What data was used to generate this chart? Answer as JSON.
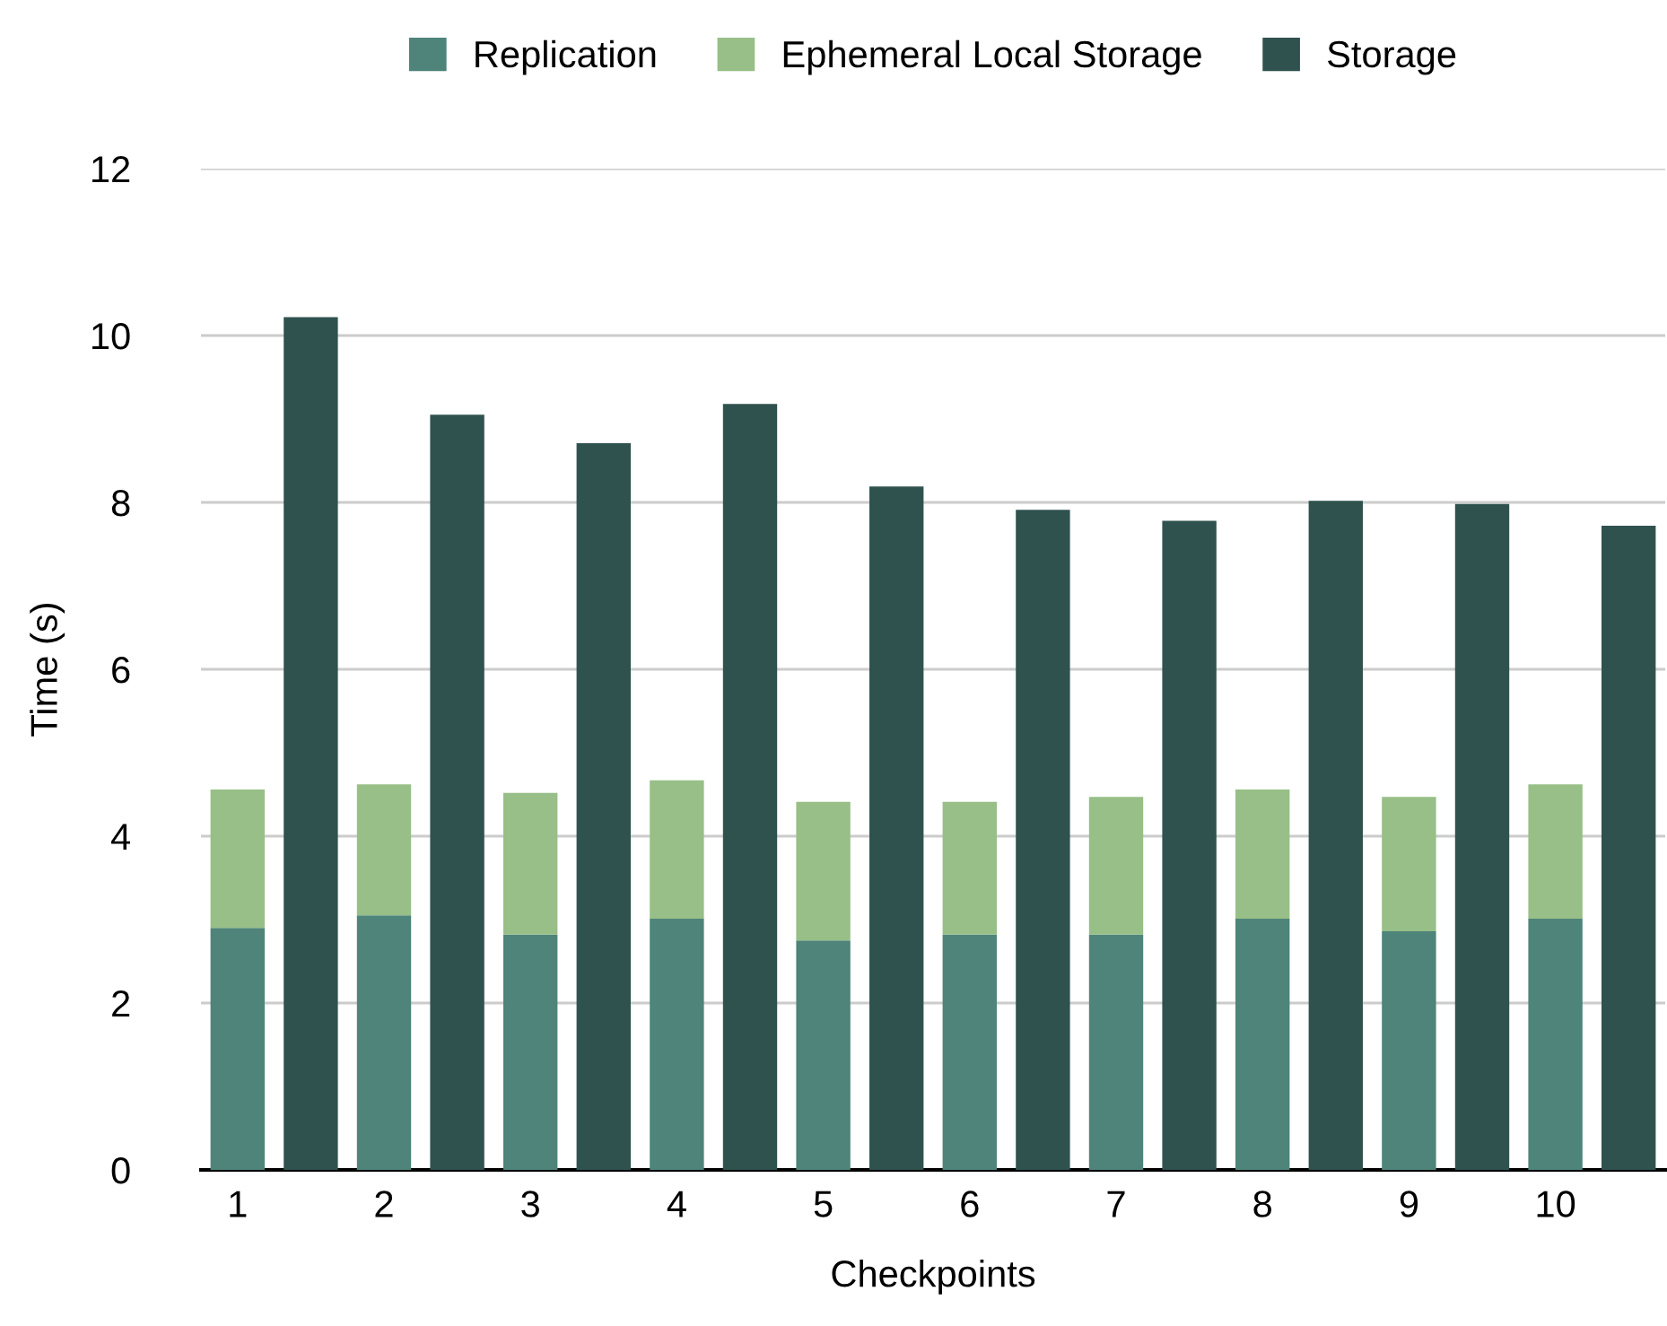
{
  "chart_data": {
    "type": "bar",
    "xlabel": "Checkpoints",
    "ylabel": "Time (s)",
    "categories": [
      "1",
      null,
      "2",
      null,
      "3",
      null,
      "4",
      null,
      "5",
      null,
      "6",
      null,
      "7",
      null,
      "8",
      null,
      "9",
      null,
      "10",
      null
    ],
    "stacked": true,
    "series": [
      {
        "name": "Replication",
        "color": "#4e8479",
        "values": [
          2.9,
          null,
          3.05,
          null,
          2.82,
          null,
          3.01,
          null,
          2.75,
          null,
          2.82,
          null,
          2.82,
          null,
          3.01,
          null,
          2.86,
          null,
          3.01,
          null
        ]
      },
      {
        "name": "Ephemeral Local Storage",
        "color": "#97bf87",
        "values": [
          1.66,
          null,
          1.57,
          null,
          1.7,
          null,
          1.66,
          null,
          1.66,
          null,
          1.59,
          null,
          1.65,
          null,
          1.55,
          null,
          1.61,
          null,
          1.61,
          null
        ]
      },
      {
        "name": "Storage",
        "color": "#2f524f",
        "values": [
          null,
          10.22,
          null,
          9.05,
          null,
          8.71,
          null,
          9.18,
          null,
          8.19,
          null,
          7.91,
          null,
          7.78,
          null,
          8.02,
          null,
          7.98,
          null,
          7.72
        ]
      }
    ],
    "ylim": [
      0,
      12
    ],
    "yticks": [
      0,
      2,
      4,
      6,
      8,
      10,
      12
    ],
    "grid": "y",
    "legend": "top"
  }
}
